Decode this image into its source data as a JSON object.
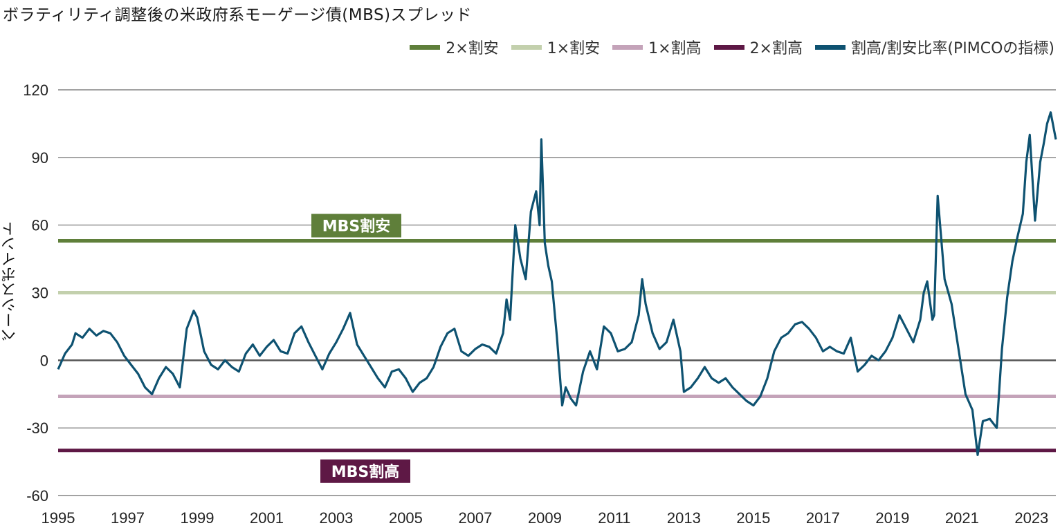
{
  "chart_data": {
    "type": "line",
    "title": "ボラティリティ調整後の米政府系モーゲージ債(MBS)スプレッド",
    "ylabel": "ベーシスポイント",
    "xlabel": "",
    "xlim": [
      1995,
      2023.7
    ],
    "ylim": [
      -60,
      120
    ],
    "yticks": [
      120,
      90,
      60,
      30,
      0,
      -30,
      -60
    ],
    "xticks": [
      1995,
      1997,
      1999,
      2001,
      2003,
      2005,
      2007,
      2009,
      2011,
      2013,
      2015,
      2017,
      2019,
      2021,
      2023
    ],
    "grid": true,
    "legend_position": "top-right",
    "reference_lines": [
      {
        "name": "2×割安",
        "value": 53,
        "color": "#5f7f3a"
      },
      {
        "name": "1×割安",
        "value": 30,
        "color": "#c3d0ad"
      },
      {
        "name": "1×割高",
        "value": -16,
        "color": "#c4a3b9"
      },
      {
        "name": "2×割高",
        "value": -40,
        "color": "#5e1845"
      }
    ],
    "band_labels": [
      {
        "text": "MBS割安",
        "value": 53,
        "color": "#5f7f3a"
      },
      {
        "text": "MBS割高",
        "value": -40,
        "color": "#5e1845"
      }
    ],
    "series": [
      {
        "name": "割高/割安比率(PIMCOの指標)",
        "color": "#0e5271",
        "x": [
          1995.0,
          1995.2,
          1995.4,
          1995.5,
          1995.7,
          1995.9,
          1996.1,
          1996.3,
          1996.5,
          1996.7,
          1996.9,
          1997.1,
          1997.3,
          1997.5,
          1997.7,
          1997.9,
          1998.1,
          1998.3,
          1998.5,
          1998.7,
          1998.9,
          1999.0,
          1999.2,
          1999.4,
          1999.6,
          1999.8,
          2000.0,
          2000.2,
          2000.4,
          2000.6,
          2000.8,
          2001.0,
          2001.2,
          2001.4,
          2001.6,
          2001.8,
          2002.0,
          2002.2,
          2002.4,
          2002.6,
          2002.8,
          2003.0,
          2003.2,
          2003.4,
          2003.6,
          2003.8,
          2004.0,
          2004.2,
          2004.4,
          2004.6,
          2004.8,
          2005.0,
          2005.2,
          2005.4,
          2005.6,
          2005.8,
          2006.0,
          2006.2,
          2006.4,
          2006.6,
          2006.8,
          2007.0,
          2007.2,
          2007.4,
          2007.6,
          2007.8,
          2007.9,
          2008.0,
          2008.15,
          2008.3,
          2008.45,
          2008.6,
          2008.75,
          2008.85,
          2008.9,
          2009.0,
          2009.1,
          2009.2,
          2009.35,
          2009.5,
          2009.6,
          2009.75,
          2009.9,
          2010.1,
          2010.3,
          2010.5,
          2010.7,
          2010.9,
          2011.1,
          2011.3,
          2011.5,
          2011.7,
          2011.8,
          2011.9,
          2012.1,
          2012.3,
          2012.5,
          2012.7,
          2012.9,
          2013.0,
          2013.2,
          2013.4,
          2013.6,
          2013.8,
          2014.0,
          2014.2,
          2014.4,
          2014.6,
          2014.8,
          2015.0,
          2015.2,
          2015.4,
          2015.6,
          2015.8,
          2016.0,
          2016.2,
          2016.4,
          2016.6,
          2016.8,
          2017.0,
          2017.2,
          2017.4,
          2017.6,
          2017.8,
          2018.0,
          2018.2,
          2018.4,
          2018.6,
          2018.8,
          2019.0,
          2019.2,
          2019.4,
          2019.6,
          2019.8,
          2019.9,
          2020.0,
          2020.15,
          2020.2,
          2020.3,
          2020.5,
          2020.7,
          2020.9,
          2021.1,
          2021.3,
          2021.45,
          2021.6,
          2021.8,
          2022.0,
          2022.15,
          2022.3,
          2022.45,
          2022.6,
          2022.75,
          2022.85,
          2022.95,
          2023.1,
          2023.25,
          2023.35,
          2023.45,
          2023.55,
          2023.7
        ],
        "values": [
          -4,
          3,
          7,
          12,
          10,
          14,
          11,
          13,
          12,
          8,
          2,
          -2,
          -6,
          -12,
          -15,
          -8,
          -3,
          -6,
          -12,
          14,
          22,
          19,
          4,
          -2,
          -4,
          0,
          -3,
          -5,
          3,
          7,
          2,
          6,
          9,
          4,
          3,
          12,
          15,
          8,
          2,
          -4,
          3,
          8,
          14,
          21,
          7,
          2,
          -3,
          -8,
          -12,
          -5,
          -4,
          -8,
          -14,
          -10,
          -8,
          -3,
          6,
          12,
          14,
          4,
          2,
          5,
          7,
          6,
          3,
          12,
          27,
          18,
          60,
          45,
          36,
          66,
          75,
          60,
          98,
          52,
          42,
          35,
          10,
          -20,
          -12,
          -17,
          -20,
          -5,
          4,
          -4,
          15,
          12,
          4,
          5,
          8,
          20,
          36,
          25,
          12,
          5,
          8,
          18,
          4,
          -14,
          -12,
          -8,
          -3,
          -8,
          -10,
          -8,
          -12,
          -15,
          -18,
          -20,
          -16,
          -8,
          4,
          10,
          12,
          16,
          17,
          14,
          10,
          4,
          6,
          4,
          3,
          10,
          -5,
          -2,
          2,
          0,
          4,
          10,
          20,
          14,
          8,
          18,
          30,
          35,
          18,
          20,
          73,
          36,
          25,
          5,
          -15,
          -22,
          -42,
          -27,
          -26,
          -30,
          5,
          28,
          44,
          55,
          65,
          88,
          100,
          62,
          88,
          96,
          105,
          110,
          98
        ]
      }
    ]
  }
}
